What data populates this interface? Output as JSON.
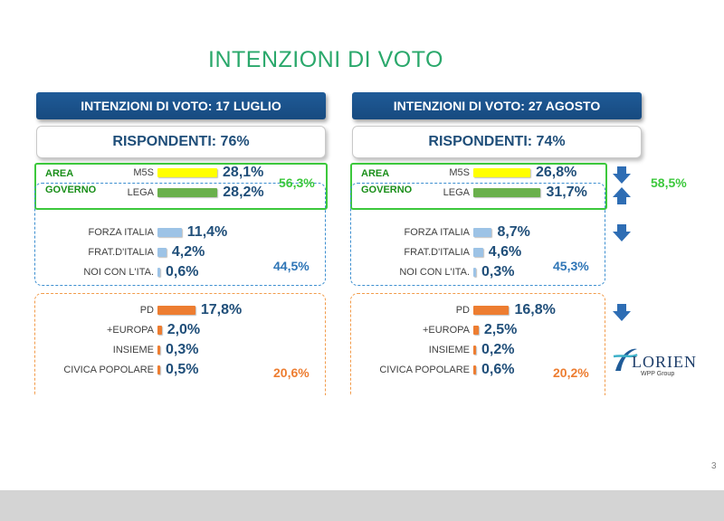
{
  "slide_title": "INTENZIONI DI VOTO",
  "chart_data": [
    {
      "type": "bar",
      "title": "INTENZIONI DI VOTO: 17 LUGLIO",
      "subtitle": "RISPONDENTI: 76%",
      "area_label": [
        "AREA",
        "GOVERNO"
      ],
      "categories": [
        "M5S",
        "LEGA",
        "FORZA ITALIA",
        "FRAT.D'ITALIA",
        "NOI CON L'ITA.",
        "PD",
        "+EUROPA",
        "INSIEME",
        "CIVICA POPOLARE"
      ],
      "values": [
        28.1,
        28.2,
        11.4,
        4.2,
        0.6,
        17.8,
        2.0,
        0.3,
        0.5
      ],
      "labels": [
        "28,1%",
        "28,2%",
        "11,4%",
        "4,2%",
        "0,6%",
        "17,8%",
        "2,0%",
        "0,3%",
        "0,5%"
      ],
      "group_totals": {
        "area_governo": "56,3%",
        "centrodestra": "44,5%",
        "centrosinistra": "20,6%"
      }
    },
    {
      "type": "bar",
      "title": "INTENZIONI DI VOTO: 27 AGOSTO",
      "subtitle": "RISPONDENTI: 74%",
      "area_label": [
        "AREA",
        "GOVERNO"
      ],
      "categories": [
        "M5S",
        "LEGA",
        "FORZA ITALIA",
        "FRAT.D'ITALIA",
        "NOI CON L'ITA.",
        "PD",
        "+EUROPA",
        "INSIEME",
        "CIVICA POPOLARE"
      ],
      "values": [
        26.8,
        31.7,
        8.7,
        4.6,
        0.3,
        16.8,
        2.5,
        0.2,
        0.6
      ],
      "labels": [
        "26,8%",
        "31,7%",
        "8,7%",
        "4,6%",
        "0,3%",
        "16,8%",
        "2,5%",
        "0,2%",
        "0,6%"
      ],
      "group_totals": {
        "area_governo": "58,5%",
        "centrodestra": "45,3%",
        "centrosinistra": "20,2%"
      }
    }
  ],
  "trend_arrows": [
    "down",
    "up",
    "down",
    "down"
  ],
  "colors": {
    "m5s": "#ffff00",
    "lega": "#6ab04c",
    "centrodestra": "#9dc3e6",
    "centrosinistra": "#ed7d31",
    "governo_total": "#3cc83c",
    "centrodestra_total": "#2e75b6",
    "centrosinistra_total": "#ed7d31",
    "arrow": "#2e6db4"
  },
  "logo": {
    "name": "LORIEN",
    "sub": "WPP Group"
  },
  "page_number": "3"
}
